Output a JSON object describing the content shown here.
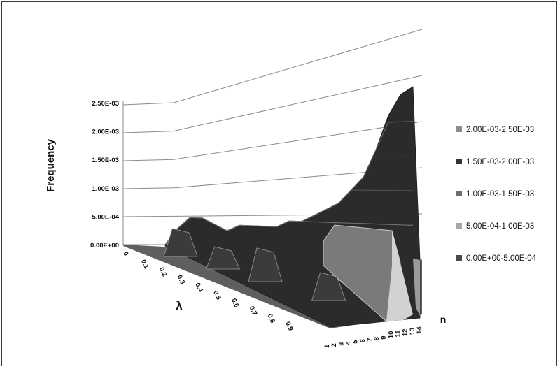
{
  "chart_data": {
    "type": "3d-surface",
    "title": "",
    "zlabel": "Frequency",
    "xlabel": "λ",
    "ylabel": "n",
    "zlim": [
      0,
      0.0025
    ],
    "z_ticks": [
      "0.00E+00",
      "5.00E-04",
      "1.00E-03",
      "1.50E-03",
      "2.00E-03",
      "2.50E-03"
    ],
    "lambda_ticks": [
      "0",
      "0.1",
      "0.2",
      "0.3",
      "0.4",
      "0.5",
      "0.6",
      "0.7",
      "0.8",
      "0.9"
    ],
    "n_ticks": [
      "1",
      "2",
      "3",
      "4",
      "5",
      "6",
      "7",
      "8",
      "9",
      "10",
      "11",
      "12",
      "13",
      "14"
    ],
    "legend_position": "right",
    "legend": [
      {
        "label": "2.00E-03-2.50E-03",
        "color": "#8c8c8c"
      },
      {
        "label": "1.50E-03-2.00E-03",
        "color": "#353535"
      },
      {
        "label": "1.00E-03-1.50E-03",
        "color": "#6e6e6e"
      },
      {
        "label": "5.00E-04-1.00E-03",
        "color": "#a8a8a8"
      },
      {
        "label": "0.00E+00-5.00E-04",
        "color": "#4a4a4a"
      }
    ],
    "profile_lambda": [
      0,
      0.05,
      0.1,
      0.15,
      0.2,
      0.25,
      0.3,
      0.35,
      0.4,
      0.45,
      0.5,
      0.55,
      0.6,
      0.65,
      0.7,
      0.75,
      0.8,
      0.85,
      0.9,
      0.95,
      1.0
    ],
    "profile_frequency": [
      0.0,
      0.0003,
      0.0005,
      0.0005,
      0.0004,
      0.0003,
      0.0004,
      0.0004,
      0.0004,
      0.0004,
      0.0005,
      0.0005,
      0.0006,
      0.0007,
      0.0008,
      0.001,
      0.0012,
      0.0016,
      0.0021,
      0.0024,
      0.0025
    ],
    "front_peaks": [
      {
        "lambda": 0.1,
        "frequency": 0.0005
      },
      {
        "lambda": 0.3,
        "frequency": 0.0004
      },
      {
        "lambda": 0.5,
        "frequency": 0.0006
      },
      {
        "lambda": 0.8,
        "frequency": 0.0005
      }
    ]
  }
}
